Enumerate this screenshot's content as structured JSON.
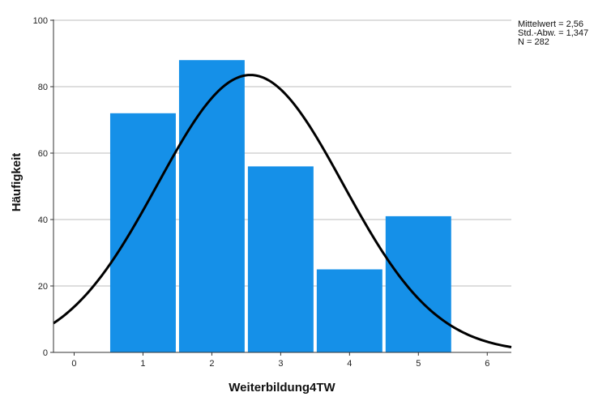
{
  "chart_data": {
    "type": "bar",
    "subtype": "histogram-with-normal-curve",
    "categories": [
      "1",
      "2",
      "3",
      "4",
      "5"
    ],
    "x": [
      1,
      2,
      3,
      4,
      5
    ],
    "values": [
      72,
      88,
      56,
      25,
      41
    ],
    "xlabel": "Weiterbildung4TW",
    "ylabel": "Häufigkeit",
    "xlim": [
      -0.3,
      6.35
    ],
    "ylim": [
      0,
      100
    ],
    "xticks": [
      "0",
      "1",
      "2",
      "3",
      "4",
      "5",
      "6"
    ],
    "yticks": [
      "0",
      "20",
      "40",
      "60",
      "80",
      "100"
    ],
    "grid": "horizontal",
    "bar_color": "#1590e8",
    "curve_color": "#000000",
    "normal_curve": {
      "mean": 2.56,
      "sd": 1.347,
      "n": 282,
      "bin_width": 1
    },
    "stats": {
      "mean_label": "Mittelwert = 2,56",
      "sd_label": "Std.-Abw. = 1,347",
      "n_label": "N = 282"
    }
  }
}
